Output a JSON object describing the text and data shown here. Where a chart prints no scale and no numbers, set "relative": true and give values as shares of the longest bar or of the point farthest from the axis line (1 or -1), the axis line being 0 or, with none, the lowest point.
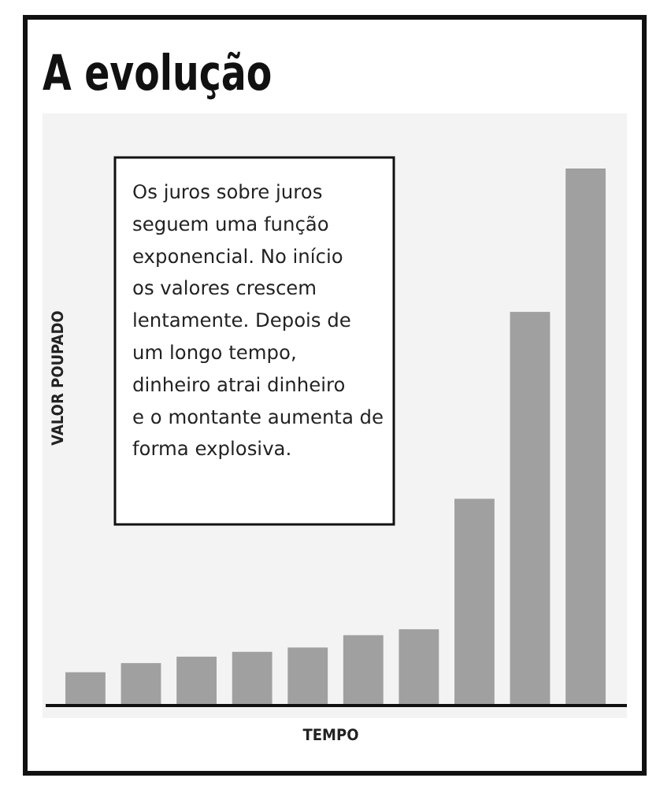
{
  "chart_data": {
    "type": "bar",
    "title": "A evolução",
    "xlabel": "TEMPO",
    "ylabel": "VALOR POUPADO",
    "relative": true,
    "categories": [
      null,
      null,
      null,
      null,
      null,
      null,
      null,
      null,
      null,
      null
    ],
    "values": [
      0.062,
      0.079,
      0.091,
      0.1,
      0.108,
      0.131,
      0.142,
      0.385,
      0.733,
      1
    ],
    "color": "#a0a0a0",
    "annotations": [
      "Os juros sobre juros seguem uma função exponencial. No início os valores crescem lentamente. Depois de um longo tempo, dinheiro atrai dinheiro e o montante aumenta de forma explosiva."
    ]
  }
}
